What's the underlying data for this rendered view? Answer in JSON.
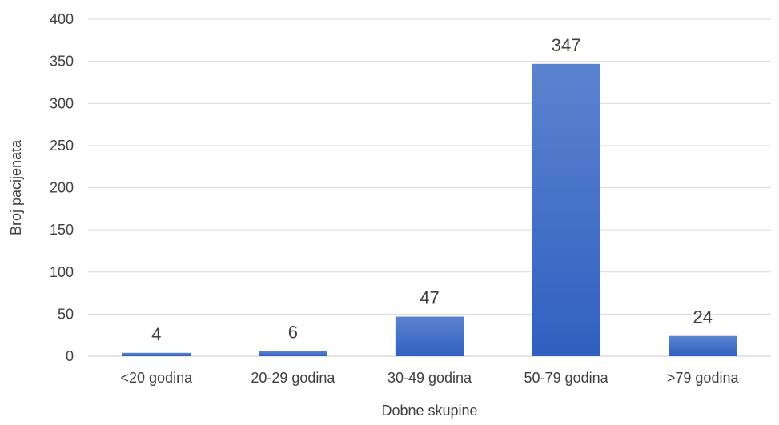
{
  "chart_data": {
    "type": "bar",
    "categories": [
      "<20 godina",
      "20-29 godina",
      "30-49 godina",
      "50-79 godina",
      ">79 godina"
    ],
    "values": [
      4,
      6,
      47,
      347,
      24
    ],
    "data_labels": [
      "4",
      "6",
      "47",
      "347",
      "24"
    ],
    "yticks": [
      "0",
      "50",
      "100",
      "150",
      "200",
      "250",
      "300",
      "350",
      "400"
    ],
    "xlabel": "Dobne skupine",
    "ylabel": "Broj pacijenata",
    "ylim": [
      0,
      400
    ],
    "grid": true,
    "bar_color": "#4472c4"
  }
}
